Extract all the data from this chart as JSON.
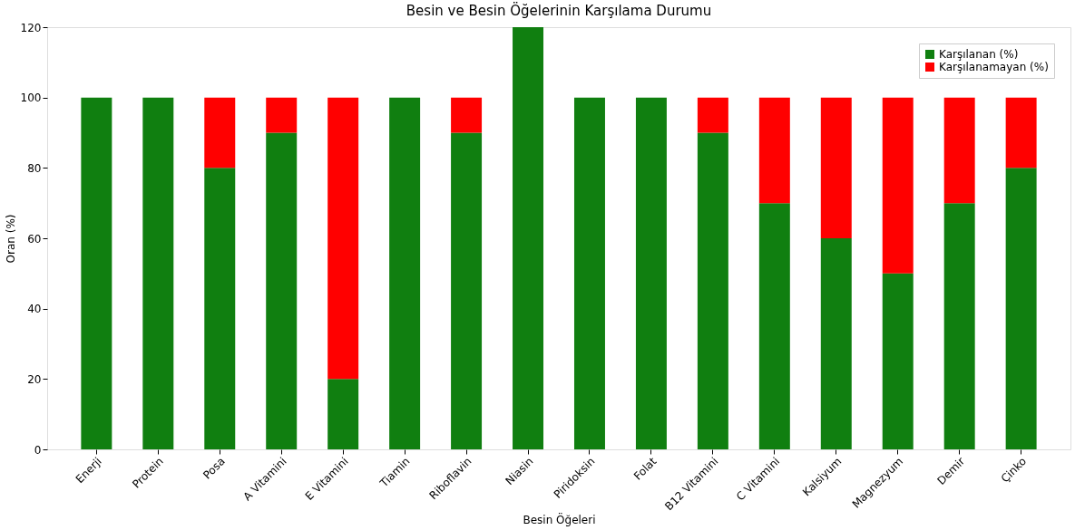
{
  "chart_data": {
    "type": "bar",
    "title": "Besin ve Besin Öğelerinin Karşılama Durumu",
    "xlabel": "Besin Öğeleri",
    "ylabel": "Oran (%)",
    "categories": [
      "Enerji",
      "Protein",
      "Posa",
      "A Vitamini",
      "E Vitamini",
      "Tiamin",
      "Riboflavin",
      "Niasin",
      "Piridoksin",
      "Folat",
      "B12 Vitamini",
      "C Vitamini",
      "Kalsiyum",
      "Magnezyum",
      "Demir",
      "Çinko"
    ],
    "series": [
      {
        "name": "Karşılanan (%)",
        "color": "#107f10",
        "values": [
          100,
          100,
          80,
          90,
          20,
          100,
          90,
          120,
          100,
          100,
          90,
          70,
          60,
          50,
          70,
          80
        ]
      },
      {
        "name": "Karşılanamayan (%)",
        "color": "#ff0000",
        "values": [
          0,
          0,
          20,
          10,
          80,
          0,
          10,
          0,
          0,
          0,
          10,
          30,
          40,
          50,
          30,
          20
        ]
      }
    ],
    "stacked": true,
    "ylim": [
      0,
      120
    ],
    "yticks": [
      0,
      20,
      40,
      60,
      80,
      100,
      120
    ],
    "grid": false,
    "legend": "top right"
  }
}
